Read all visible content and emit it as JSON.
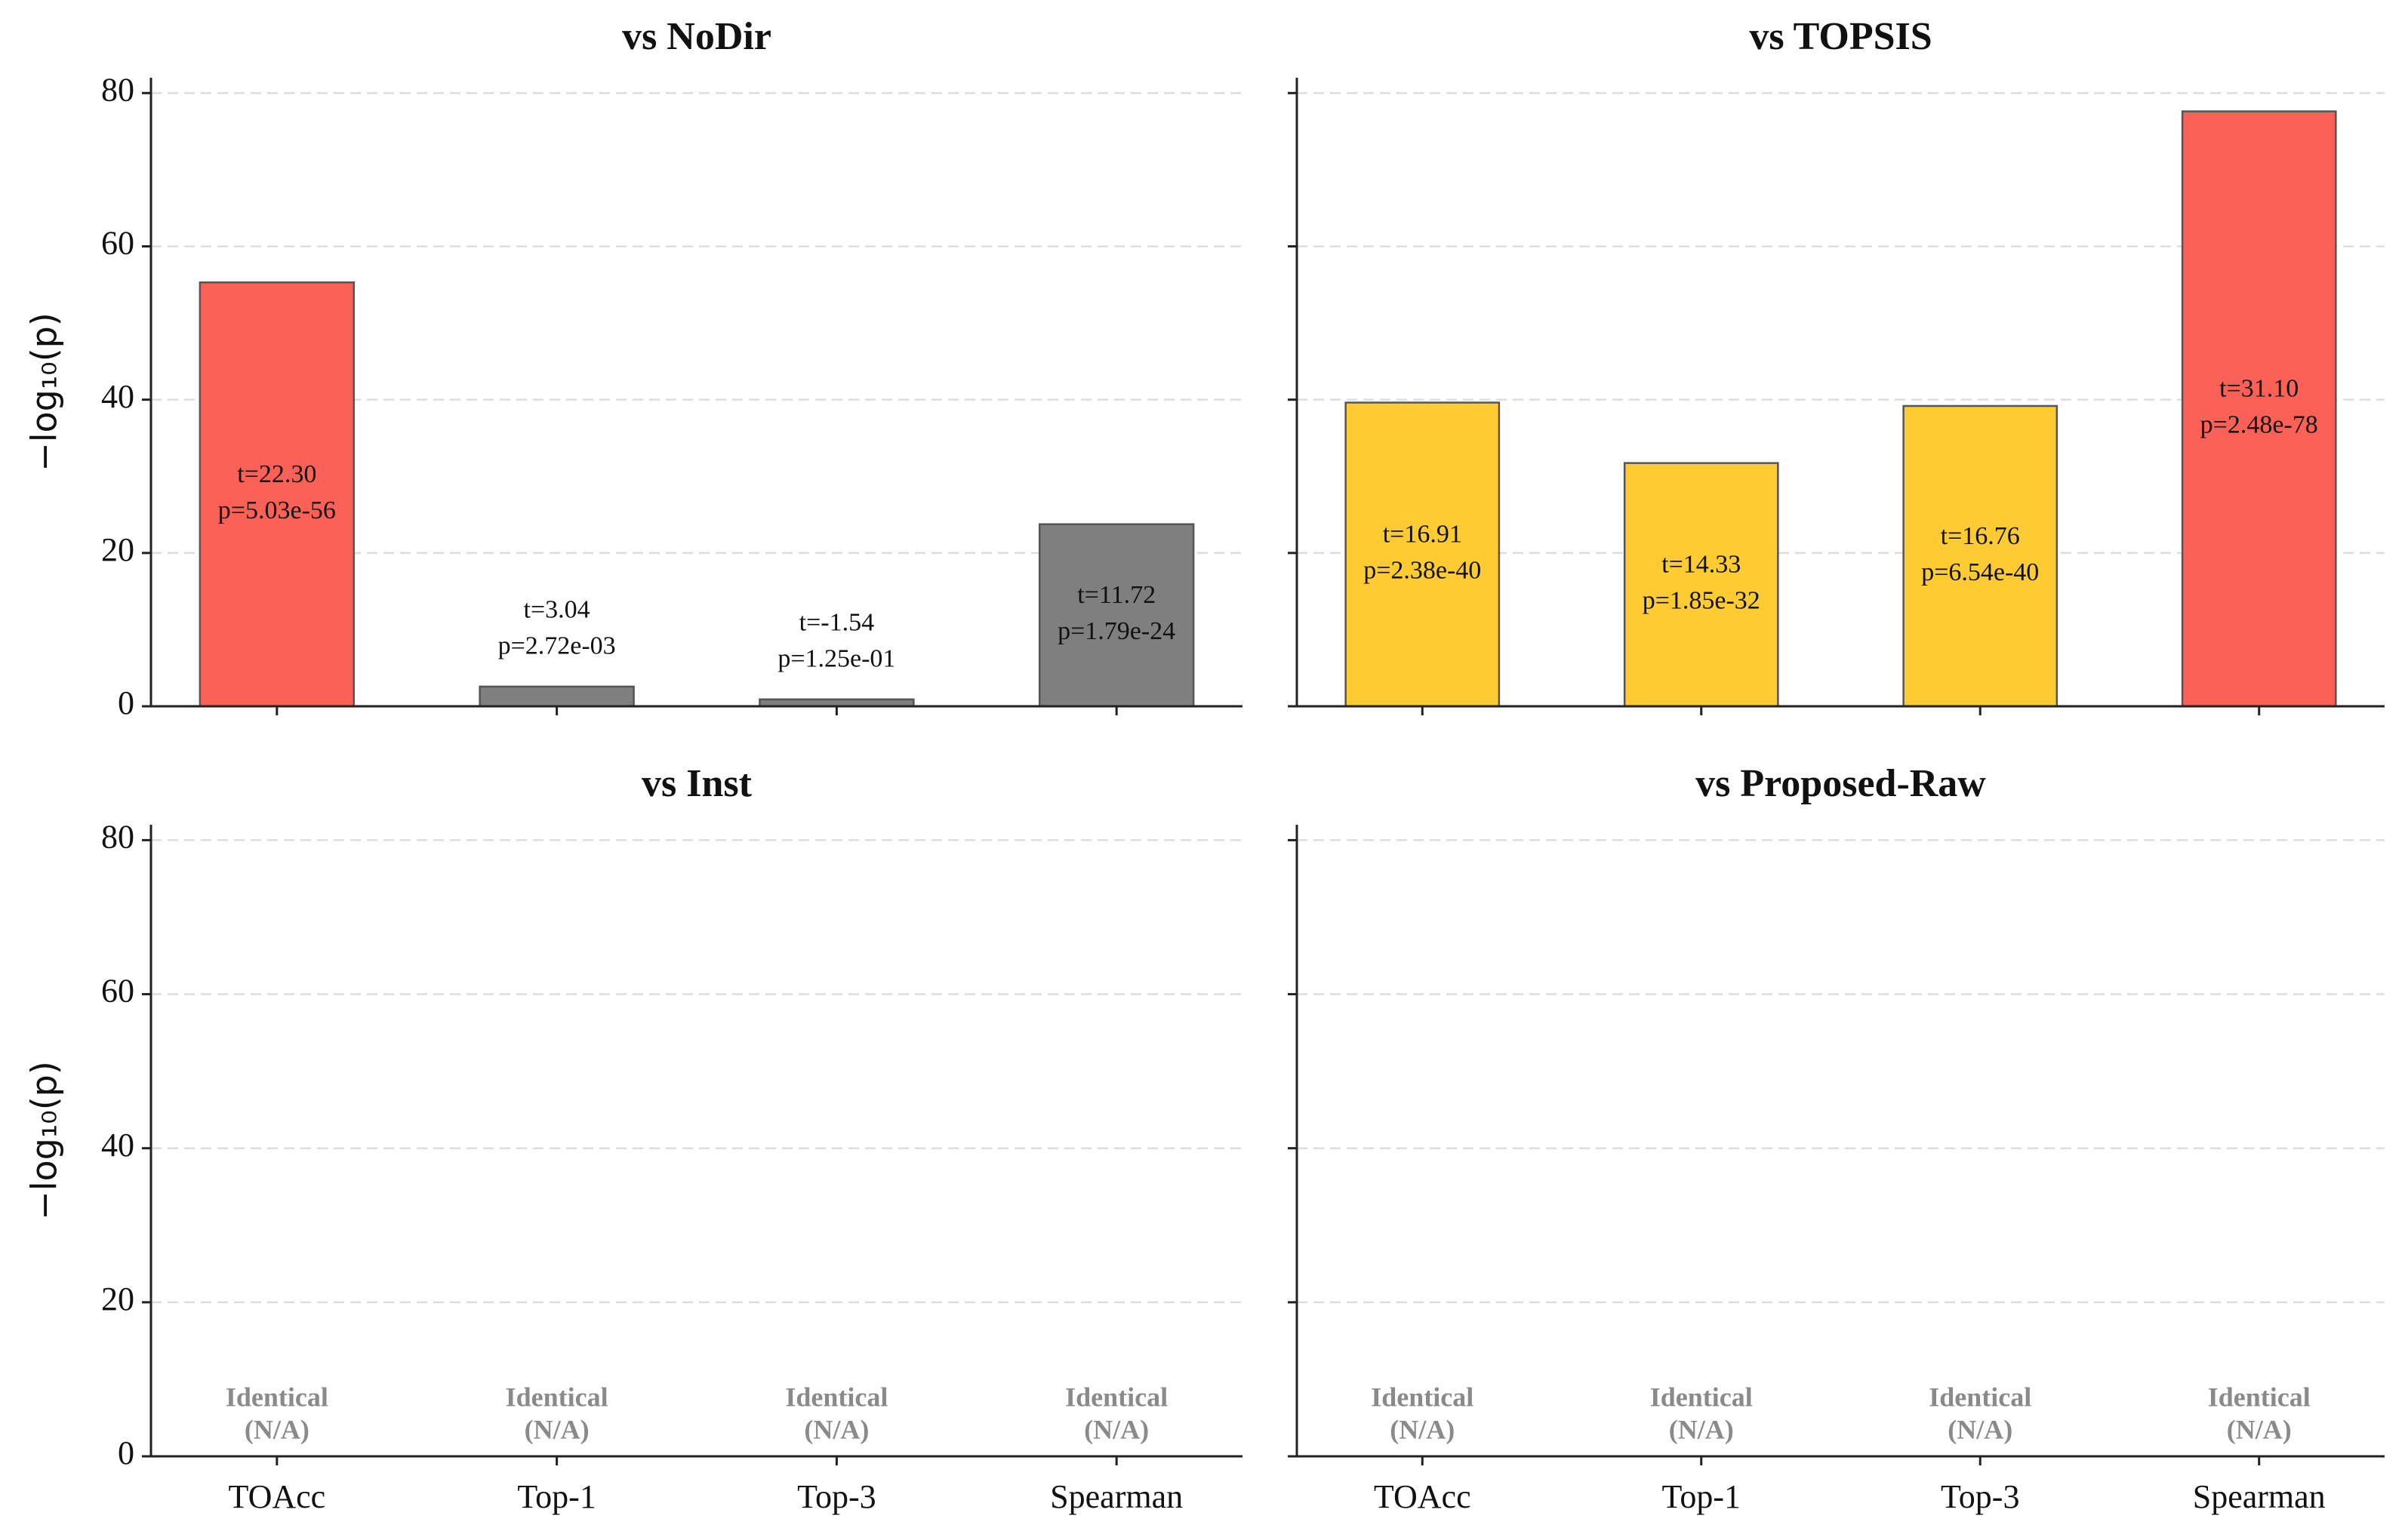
{
  "chart_data": [
    {
      "type": "bar",
      "title": "vs NoDir",
      "ylabel": "−log₁₀(p)",
      "values": [
        55.3,
        2.57,
        0.9,
        23.75
      ],
      "colors": [
        "#fc6158",
        "#7f7f7f",
        "#7f7f7f",
        "#7f7f7f"
      ],
      "annotations": [
        [
          "t=22.30",
          "p=5.03e-56"
        ],
        [
          "t=3.04",
          "p=2.72e-03"
        ],
        [
          "t=-1.54",
          "p=1.25e-01"
        ],
        [
          "t=11.72",
          "p=1.79e-24"
        ]
      ],
      "ylim": [
        0,
        82
      ],
      "yticks": [
        0,
        20,
        40,
        60,
        80
      ],
      "grid": true
    },
    {
      "type": "bar",
      "title": "vs TOPSIS",
      "values": [
        39.62,
        31.73,
        39.18,
        77.61
      ],
      "colors": [
        "#fecb33",
        "#fecb33",
        "#fecb33",
        "#fc6158"
      ],
      "annotations": [
        [
          "t=16.91",
          "p=2.38e-40"
        ],
        [
          "t=14.33",
          "p=1.85e-32"
        ],
        [
          "t=16.76",
          "p=6.54e-40"
        ],
        [
          "t=31.10",
          "p=2.48e-78"
        ]
      ],
      "ylim": [
        0,
        82
      ],
      "yticks": [
        0,
        20,
        40,
        60,
        80
      ],
      "grid": true
    },
    {
      "type": "bar",
      "title": "vs Inst",
      "ylabel": "−log₁₀(p)",
      "categories": [
        "TOAcc",
        "Top-1",
        "Top-3",
        "Spearman"
      ],
      "values": [
        null,
        null,
        null,
        null
      ],
      "annotations": [
        [
          "Identical",
          "(N/A)"
        ],
        [
          "Identical",
          "(N/A)"
        ],
        [
          "Identical",
          "(N/A)"
        ],
        [
          "Identical",
          "(N/A)"
        ]
      ],
      "ylim": [
        0,
        82
      ],
      "yticks": [
        0,
        20,
        40,
        60,
        80
      ],
      "grid": true
    },
    {
      "type": "bar",
      "title": "vs Proposed-Raw",
      "categories": [
        "TOAcc",
        "Top-1",
        "Top-3",
        "Spearman"
      ],
      "values": [
        null,
        null,
        null,
        null
      ],
      "annotations": [
        [
          "Identical",
          "(N/A)"
        ],
        [
          "Identical",
          "(N/A)"
        ],
        [
          "Identical",
          "(N/A)"
        ],
        [
          "Identical",
          "(N/A)"
        ]
      ],
      "ylim": [
        0,
        82
      ],
      "yticks": [
        0,
        20,
        40,
        60,
        80
      ],
      "grid": true
    }
  ]
}
